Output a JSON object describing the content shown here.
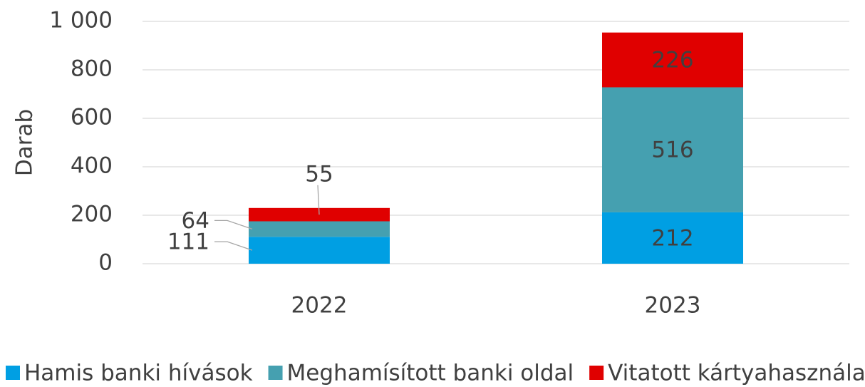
{
  "chart_data": {
    "type": "stacked_bar",
    "categories": [
      "2022",
      "2023"
    ],
    "series": [
      {
        "name": "Hamis banki hívások",
        "color": "#009fe3",
        "values": [
          111,
          212
        ]
      },
      {
        "name": "Meghamísított banki oldal",
        "color": "#45a0b0",
        "values": [
          64,
          516
        ]
      },
      {
        "name": "Vitatott kártyahasználat",
        "color": "#e00000",
        "values": [
          55,
          226
        ]
      }
    ],
    "y_label": "Darab",
    "ylim": [
      0,
      1000
    ],
    "yticks": [
      0,
      200,
      400,
      600,
      800,
      {
        "value": 1000,
        "label": "1 000"
      }
    ],
    "grid": true,
    "legend": "bottom"
  }
}
